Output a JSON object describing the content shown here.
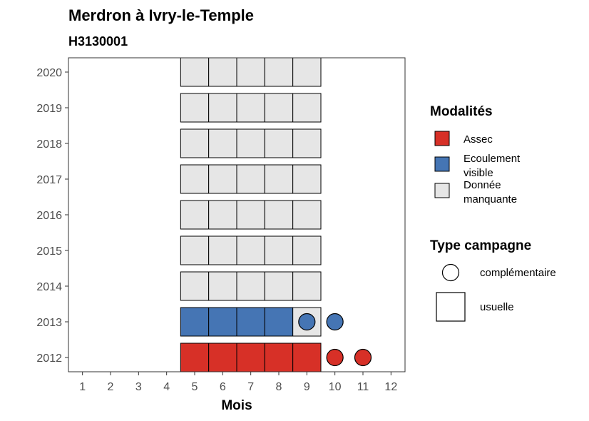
{
  "chart_data": {
    "type": "heatmap",
    "title": "Merdron à Ivry-le-Temple",
    "subtitle": "H3130001",
    "xlabel": "Mois",
    "ylabel": "",
    "x_ticks": [
      "1",
      "2",
      "3",
      "4",
      "5",
      "6",
      "7",
      "8",
      "9",
      "10",
      "11",
      "12"
    ],
    "y_ticks": [
      "2012",
      "2013",
      "2014",
      "2015",
      "2016",
      "2017",
      "2018",
      "2019",
      "2020"
    ],
    "xlim": [
      0.5,
      12.5
    ],
    "ylim": [
      2011.6,
      2020.4
    ],
    "grid": false,
    "modalites_colors": {
      "Assec": "#d73027",
      "Ecoulement visible": "#4575b4",
      "Donnée manquante": "#e6e6e6"
    },
    "points": [
      {
        "year": 2012,
        "month": 5,
        "modalite": "Assec",
        "campagne": "usuelle"
      },
      {
        "year": 2012,
        "month": 6,
        "modalite": "Assec",
        "campagne": "usuelle"
      },
      {
        "year": 2012,
        "month": 7,
        "modalite": "Assec",
        "campagne": "usuelle"
      },
      {
        "year": 2012,
        "month": 8,
        "modalite": "Assec",
        "campagne": "usuelle"
      },
      {
        "year": 2012,
        "month": 9,
        "modalite": "Assec",
        "campagne": "usuelle"
      },
      {
        "year": 2012,
        "month": 10,
        "modalite": "Assec",
        "campagne": "complémentaire"
      },
      {
        "year": 2012,
        "month": 11,
        "modalite": "Assec",
        "campagne": "complémentaire"
      },
      {
        "year": 2013,
        "month": 5,
        "modalite": "Ecoulement visible",
        "campagne": "usuelle"
      },
      {
        "year": 2013,
        "month": 6,
        "modalite": "Ecoulement visible",
        "campagne": "usuelle"
      },
      {
        "year": 2013,
        "month": 7,
        "modalite": "Ecoulement visible",
        "campagne": "usuelle"
      },
      {
        "year": 2013,
        "month": 8,
        "modalite": "Ecoulement visible",
        "campagne": "usuelle"
      },
      {
        "year": 2013,
        "month": 9,
        "modalite": "Donnée manquante",
        "campagne": "usuelle"
      },
      {
        "year": 2013,
        "month": 9,
        "modalite": "Ecoulement visible",
        "campagne": "complémentaire"
      },
      {
        "year": 2013,
        "month": 10,
        "modalite": "Ecoulement visible",
        "campagne": "complémentaire"
      },
      {
        "year": 2014,
        "month": 5,
        "modalite": "Donnée manquante",
        "campagne": "usuelle"
      },
      {
        "year": 2014,
        "month": 6,
        "modalite": "Donnée manquante",
        "campagne": "usuelle"
      },
      {
        "year": 2014,
        "month": 7,
        "modalite": "Donnée manquante",
        "campagne": "usuelle"
      },
      {
        "year": 2014,
        "month": 8,
        "modalite": "Donnée manquante",
        "campagne": "usuelle"
      },
      {
        "year": 2014,
        "month": 9,
        "modalite": "Donnée manquante",
        "campagne": "usuelle"
      },
      {
        "year": 2015,
        "month": 5,
        "modalite": "Donnée manquante",
        "campagne": "usuelle"
      },
      {
        "year": 2015,
        "month": 6,
        "modalite": "Donnée manquante",
        "campagne": "usuelle"
      },
      {
        "year": 2015,
        "month": 7,
        "modalite": "Donnée manquante",
        "campagne": "usuelle"
      },
      {
        "year": 2015,
        "month": 8,
        "modalite": "Donnée manquante",
        "campagne": "usuelle"
      },
      {
        "year": 2015,
        "month": 9,
        "modalite": "Donnée manquante",
        "campagne": "usuelle"
      },
      {
        "year": 2016,
        "month": 5,
        "modalite": "Donnée manquante",
        "campagne": "usuelle"
      },
      {
        "year": 2016,
        "month": 6,
        "modalite": "Donnée manquante",
        "campagne": "usuelle"
      },
      {
        "year": 2016,
        "month": 7,
        "modalite": "Donnée manquante",
        "campagne": "usuelle"
      },
      {
        "year": 2016,
        "month": 8,
        "modalite": "Donnée manquante",
        "campagne": "usuelle"
      },
      {
        "year": 2016,
        "month": 9,
        "modalite": "Donnée manquante",
        "campagne": "usuelle"
      },
      {
        "year": 2017,
        "month": 5,
        "modalite": "Donnée manquante",
        "campagne": "usuelle"
      },
      {
        "year": 2017,
        "month": 6,
        "modalite": "Donnée manquante",
        "campagne": "usuelle"
      },
      {
        "year": 2017,
        "month": 7,
        "modalite": "Donnée manquante",
        "campagne": "usuelle"
      },
      {
        "year": 2017,
        "month": 8,
        "modalite": "Donnée manquante",
        "campagne": "usuelle"
      },
      {
        "year": 2017,
        "month": 9,
        "modalite": "Donnée manquante",
        "campagne": "usuelle"
      },
      {
        "year": 2018,
        "month": 5,
        "modalite": "Donnée manquante",
        "campagne": "usuelle"
      },
      {
        "year": 2018,
        "month": 6,
        "modalite": "Donnée manquante",
        "campagne": "usuelle"
      },
      {
        "year": 2018,
        "month": 7,
        "modalite": "Donnée manquante",
        "campagne": "usuelle"
      },
      {
        "year": 2018,
        "month": 8,
        "modalite": "Donnée manquante",
        "campagne": "usuelle"
      },
      {
        "year": 2018,
        "month": 9,
        "modalite": "Donnée manquante",
        "campagne": "usuelle"
      },
      {
        "year": 2019,
        "month": 5,
        "modalite": "Donnée manquante",
        "campagne": "usuelle"
      },
      {
        "year": 2019,
        "month": 6,
        "modalite": "Donnée manquante",
        "campagne": "usuelle"
      },
      {
        "year": 2019,
        "month": 7,
        "modalite": "Donnée manquante",
        "campagne": "usuelle"
      },
      {
        "year": 2019,
        "month": 8,
        "modalite": "Donnée manquante",
        "campagne": "usuelle"
      },
      {
        "year": 2019,
        "month": 9,
        "modalite": "Donnée manquante",
        "campagne": "usuelle"
      },
      {
        "year": 2020,
        "month": 5,
        "modalite": "Donnée manquante",
        "campagne": "usuelle"
      },
      {
        "year": 2020,
        "month": 6,
        "modalite": "Donnée manquante",
        "campagne": "usuelle"
      },
      {
        "year": 2020,
        "month": 7,
        "modalite": "Donnée manquante",
        "campagne": "usuelle"
      },
      {
        "year": 2020,
        "month": 8,
        "modalite": "Donnée manquante",
        "campagne": "usuelle"
      },
      {
        "year": 2020,
        "month": 9,
        "modalite": "Donnée manquante",
        "campagne": "usuelle"
      }
    ],
    "legend": {
      "placement": "right",
      "modalites": {
        "title": "Modalités",
        "items": [
          {
            "name": "Assec",
            "lines": [
              "Assec"
            ]
          },
          {
            "name": "Ecoulement visible",
            "lines": [
              "Ecoulement",
              "visible"
            ]
          },
          {
            "name": "Donnée manquante",
            "lines": [
              "Donnée",
              "manquante"
            ]
          }
        ]
      },
      "campagne": {
        "title": "Type campagne",
        "items": [
          {
            "name": "complémentaire",
            "shape": "circle"
          },
          {
            "name": "usuelle",
            "shape": "square"
          }
        ]
      }
    }
  }
}
